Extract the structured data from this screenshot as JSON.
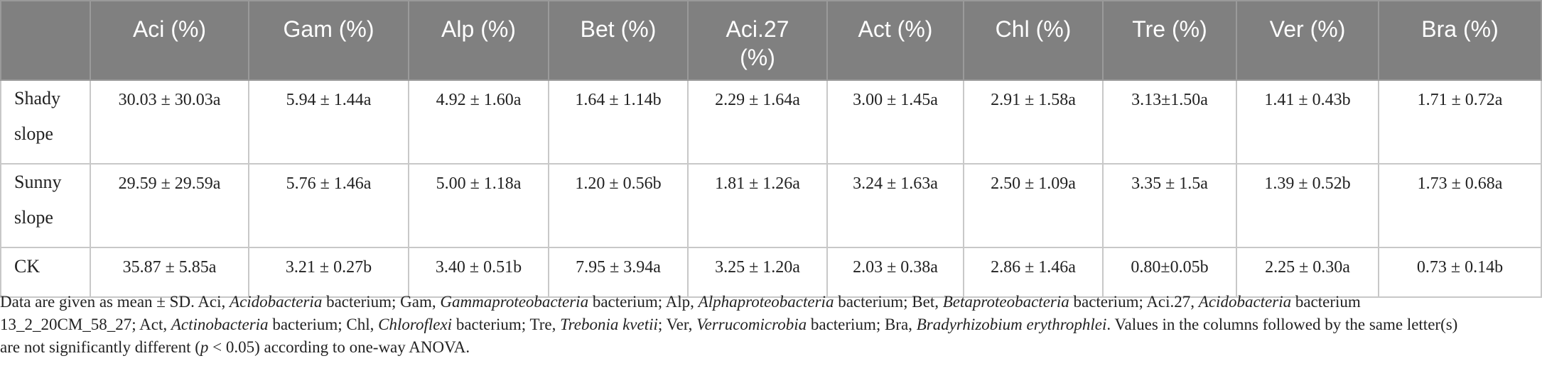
{
  "table": {
    "headers": [
      "",
      "Aci (%)",
      "Gam (%)",
      "Alp (%)",
      "Bet (%)",
      "Aci.27 (%)",
      "Act (%)",
      "Chl (%)",
      "Tre (%)",
      "Ver (%)",
      "Bra (%)"
    ],
    "rows": [
      {
        "label": "Shady slope",
        "cells": [
          "30.03 ± 30.03a",
          "5.94 ± 1.44a",
          "4.92 ± 1.60a",
          "1.64 ± 1.14b",
          "2.29 ± 1.64a",
          "3.00 ± 1.45a",
          "2.91 ± 1.58a",
          "3.13±1.50a",
          "1.41 ± 0.43b",
          "1.71 ± 0.72a"
        ]
      },
      {
        "label": "Sunny slope",
        "cells": [
          "29.59 ± 29.59a",
          "5.76 ± 1.46a",
          "5.00 ± 1.18a",
          "1.20 ± 0.56b",
          "1.81 ± 1.26a",
          "3.24 ± 1.63a",
          "2.50 ± 1.09a",
          "3.35 ± 1.5a",
          "1.39 ± 0.52b",
          "1.73 ± 0.68a"
        ]
      },
      {
        "label": "CK",
        "cells": [
          "35.87 ± 5.85a",
          "3.21 ± 0.27b",
          "3.40 ± 0.51b",
          "7.95 ± 3.94a",
          "3.25 ± 1.20a",
          "2.03 ± 0.38a",
          "2.86 ± 1.46a",
          "0.80±0.05b",
          "2.25 ± 0.30a",
          "0.73 ± 0.14b"
        ]
      }
    ]
  },
  "footnote": {
    "segments": [
      {
        "text": "Data are given as mean ± SD. Aci, ",
        "italic": false
      },
      {
        "text": "Acidobacteria",
        "italic": true
      },
      {
        "text": " bacterium; Gam, ",
        "italic": false
      },
      {
        "text": "Gammaproteobacteria",
        "italic": true
      },
      {
        "text": " bacterium; Alp, ",
        "italic": false
      },
      {
        "text": "Alphaproteobacteria",
        "italic": true
      },
      {
        "text": " bacterium; Bet, ",
        "italic": false
      },
      {
        "text": "Betaproteobacteria",
        "italic": true
      },
      {
        "text": " bacterium; Aci.27, ",
        "italic": false
      },
      {
        "text": "Acidobacteria",
        "italic": true
      },
      {
        "text": " bacterium 13_2_20CM_58_27; Act, ",
        "italic": false
      },
      {
        "text": "Actinobacteria",
        "italic": true
      },
      {
        "text": " bacterium; Chl, ",
        "italic": false
      },
      {
        "text": "Chloroflexi",
        "italic": true
      },
      {
        "text": " bacterium; Tre, ",
        "italic": false
      },
      {
        "text": "Trebonia kvetii",
        "italic": true
      },
      {
        "text": "; Ver, ",
        "italic": false
      },
      {
        "text": "Verrucomicrobia",
        "italic": true
      },
      {
        "text": " bacterium; Bra, ",
        "italic": false
      },
      {
        "text": "Bradyrhizobium erythrophlei",
        "italic": true
      },
      {
        "text": ". Values in the columns followed by the same letter(s) are not significantly different (",
        "italic": false
      },
      {
        "text": "p",
        "italic": true
      },
      {
        "text": " < 0.05) according to one-way ANOVA.",
        "italic": false
      }
    ]
  }
}
